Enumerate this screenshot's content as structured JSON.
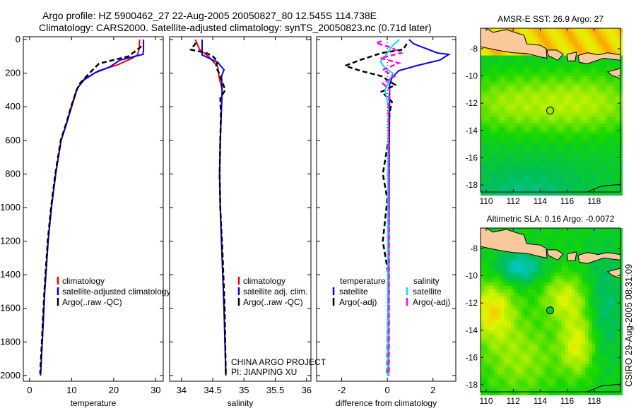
{
  "title": {
    "line1": "Argo profile: HZ 5900462_27 22-Aug-2005 20050827_80 12.545S 114.738E",
    "line2": "Climatology: CARS2000. Satellite-adjusted climatology: synTS_20050823.nc (0.71d later)"
  },
  "credit": "CSIRO 29-Aug-2005 08:31:09",
  "project": {
    "line1": "CHINA ARGO PROJECT",
    "line2": "PI: JIANPING XU"
  },
  "colors": {
    "climatology": "#ff0000",
    "satellite": "#0000ff",
    "argo": "#000000",
    "sal_satellite": "#00e5e5",
    "sal_argo": "#ff00ff",
    "land": "#f9c99b"
  },
  "chart_data": [
    {
      "type": "line",
      "xlabel": "temperature",
      "ylabel": "",
      "xlim": [
        -1.5,
        31.8
      ],
      "ylim": [
        2034,
        -17
      ],
      "xticks": [
        0,
        10,
        20,
        30
      ],
      "yticks": [
        0,
        200,
        400,
        600,
        800,
        1000,
        1200,
        1400,
        1600,
        1800,
        2000
      ],
      "legend_position": "lower-center",
      "series": [
        {
          "name": "climatology",
          "color": "#ff0000",
          "style": "solid",
          "points": [
            [
              26.2,
              0
            ],
            [
              26.1,
              50
            ],
            [
              25.7,
              90
            ],
            [
              24.5,
              110
            ],
            [
              21,
              150
            ],
            [
              16.5,
              185
            ],
            [
              13,
              235
            ],
            [
              11.4,
              290
            ],
            [
              10.2,
              385
            ],
            [
              8.8,
              500
            ],
            [
              7.5,
              600
            ],
            [
              6.2,
              800
            ],
            [
              5.2,
              1000
            ],
            [
              4.4,
              1200
            ],
            [
              3.6,
              1500
            ],
            [
              3.0,
              1800
            ],
            [
              2.6,
              2000
            ]
          ]
        },
        {
          "name": "satellite-adjusted climatology",
          "color": "#0000ff",
          "style": "solid",
          "points": [
            [
              27.1,
              0
            ],
            [
              27.1,
              60
            ],
            [
              27,
              88
            ],
            [
              21.5,
              122
            ],
            [
              19,
              164
            ],
            [
              15.6,
              197
            ],
            [
              13,
              240
            ],
            [
              11.3,
              290
            ],
            [
              10.1,
              385
            ],
            [
              8.8,
              500
            ],
            [
              7.5,
              600
            ],
            [
              6.2,
              800
            ],
            [
              5.2,
              1000
            ],
            [
              4.4,
              1200
            ],
            [
              3.6,
              1500
            ],
            [
              3.0,
              1800
            ],
            [
              2.6,
              2000
            ]
          ]
        },
        {
          "name": "Argo(..raw -QC)",
          "color": "#000000",
          "style": "dashed",
          "points": [
            [
              26.6,
              40
            ],
            [
              25.2,
              68
            ],
            [
              23.5,
              100
            ],
            [
              16.5,
              143
            ],
            [
              14,
              206
            ],
            [
              12,
              260
            ],
            [
              11.2,
              300
            ],
            [
              10,
              390
            ],
            [
              8.7,
              500
            ],
            [
              7.4,
              600
            ],
            [
              6.1,
              800
            ],
            [
              5.1,
              1000
            ],
            [
              4.3,
              1200
            ],
            [
              3.5,
              1500
            ],
            [
              2.9,
              1800
            ],
            [
              2.5,
              1990
            ]
          ]
        }
      ]
    },
    {
      "type": "line",
      "xlabel": "salinity",
      "ylabel": "",
      "xlim": [
        33.81,
        36.07
      ],
      "ylim": [
        2034,
        -17
      ],
      "xticks": [
        34,
        34.5,
        35,
        35.5,
        36
      ],
      "xticklabels": [
        "34",
        "34.5",
        "35",
        "35.5",
        "36"
      ],
      "legend_position": "lower-center",
      "series": [
        {
          "name": "climatology",
          "color": "#ff0000",
          "style": "solid",
          "points": [
            [
              34.22,
              0
            ],
            [
              34.29,
              60
            ],
            [
              34.43,
              100
            ],
            [
              34.58,
              160
            ],
            [
              34.6,
              220
            ],
            [
              34.65,
              300
            ],
            [
              34.64,
              400
            ],
            [
              34.62,
              600
            ],
            [
              34.61,
              800
            ],
            [
              34.62,
              1000
            ],
            [
              34.65,
              1300
            ],
            [
              34.68,
              1600
            ],
            [
              34.71,
              2000
            ]
          ]
        },
        {
          "name": "satellite adj. clim.",
          "color": "#0000ff",
          "style": "solid",
          "points": [
            [
              34.33,
              0
            ],
            [
              34.33,
              92
            ],
            [
              34.58,
              135
            ],
            [
              34.68,
              180
            ],
            [
              34.64,
              218
            ],
            [
              34.65,
              310
            ],
            [
              34.64,
              400
            ],
            [
              34.62,
              600
            ],
            [
              34.61,
              800
            ],
            [
              34.62,
              1000
            ],
            [
              34.65,
              1300
            ],
            [
              34.68,
              1600
            ],
            [
              34.71,
              2000
            ]
          ]
        },
        {
          "name": "Argo(..raw -QC)",
          "color": "#000000",
          "style": "dashed",
          "points": [
            [
              34.23,
              20
            ],
            [
              34.15,
              60
            ],
            [
              34.4,
              80
            ],
            [
              34.5,
              100
            ],
            [
              34.58,
              130
            ],
            [
              34.55,
              160
            ],
            [
              34.6,
              200
            ],
            [
              34.65,
              250
            ],
            [
              34.7,
              300
            ],
            [
              34.62,
              350
            ],
            [
              34.63,
              450
            ],
            [
              34.62,
              600
            ],
            [
              34.61,
              800
            ],
            [
              34.62,
              1000
            ],
            [
              34.66,
              1300
            ],
            [
              34.69,
              1600
            ],
            [
              34.71,
              2000
            ]
          ]
        }
      ]
    },
    {
      "type": "line",
      "xlabel": "difference from climatology",
      "ylabel": "",
      "xlim": [
        -3.1,
        3.0
      ],
      "ylim": [
        2034,
        -17
      ],
      "xticks": [
        -2,
        0,
        2
      ],
      "legend_groups": [
        {
          "title": "temperature",
          "entries": [
            "satellite",
            "Argo(-adj)"
          ]
        },
        {
          "title": "salinity",
          "entries": [
            "satellite",
            "Argo(-adj)"
          ]
        }
      ],
      "series": [
        {
          "name": "temperature satellite",
          "color": "#0000ff",
          "style": "solid",
          "points": [
            [
              0.95,
              0
            ],
            [
              1.15,
              25
            ],
            [
              2.2,
              80
            ],
            [
              2.7,
              88
            ],
            [
              2.3,
              122
            ],
            [
              1.3,
              155
            ],
            [
              0.5,
              185
            ],
            [
              0.2,
              227
            ],
            [
              0.1,
              270
            ],
            [
              0.1,
              400
            ],
            [
              0.08,
              800
            ],
            [
              0.06,
              1200
            ],
            [
              0.05,
              2000
            ]
          ]
        },
        {
          "name": "temperature Argo(-adj)",
          "color": "#000000",
          "style": "dashed",
          "points": [
            [
              0.85,
              25
            ],
            [
              0.7,
              59
            ],
            [
              -0.25,
              80
            ],
            [
              -1.2,
              122
            ],
            [
              -1.85,
              156
            ],
            [
              -1.2,
              185
            ],
            [
              -0.25,
              218
            ],
            [
              0.35,
              270
            ],
            [
              -0.25,
              311
            ],
            [
              0.2,
              370
            ],
            [
              0.1,
              437
            ],
            [
              0.05,
              600
            ],
            [
              -0.2,
              800
            ],
            [
              0.0,
              950
            ],
            [
              -0.2,
              1200
            ],
            [
              0.05,
              1400
            ],
            [
              0.0,
              2000
            ]
          ]
        },
        {
          "name": "salinity satellite",
          "color": "#00e5e5",
          "style": "solid",
          "points": [
            [
              0.53,
              0
            ],
            [
              0.2,
              40
            ],
            [
              -0.1,
              100
            ],
            [
              -0.3,
              130
            ],
            [
              -0.1,
              170
            ],
            [
              0.25,
              200
            ],
            [
              0.1,
              240
            ],
            [
              -0.1,
              300
            ],
            [
              0.05,
              400
            ],
            [
              0.03,
              800
            ],
            [
              0.03,
              2000
            ]
          ]
        },
        {
          "name": "salinity Argo(-adj)",
          "color": "#ff00ff",
          "style": "dashed",
          "points": [
            [
              -0.25,
              10
            ],
            [
              -0.5,
              20
            ],
            [
              0.2,
              50
            ],
            [
              0.6,
              80
            ],
            [
              -0.3,
              110
            ],
            [
              0.5,
              140
            ],
            [
              -0.2,
              180
            ],
            [
              0.3,
              220
            ],
            [
              -0.2,
              260
            ],
            [
              0.1,
              300
            ],
            [
              0.05,
              400
            ],
            [
              0.08,
              800
            ],
            [
              0.07,
              2000
            ]
          ]
        }
      ]
    },
    {
      "type": "heatmap",
      "title": "AMSR-E SST: 26.9 Argo: 27",
      "xlim": [
        109.58,
        119.95
      ],
      "ylim": [
        -18.52,
        -6.5
      ],
      "xticks": [
        110,
        112,
        114,
        116,
        118
      ],
      "yticks": [
        -8,
        -10,
        -12,
        -14,
        -16,
        -18
      ],
      "argo_position": {
        "lon": 114.738,
        "lat": -12.545
      }
    },
    {
      "type": "heatmap",
      "title": "Altimetric SLA: 0.16 Argo: -0.0072",
      "xlim": [
        109.58,
        119.95
      ],
      "ylim": [
        -18.52,
        -6.5
      ],
      "xticks": [
        110,
        112,
        114,
        116,
        118
      ],
      "yticks": [
        -8,
        -10,
        -12,
        -14,
        -16,
        -18
      ],
      "argo_position": {
        "lon": 114.738,
        "lat": -12.545
      }
    }
  ]
}
